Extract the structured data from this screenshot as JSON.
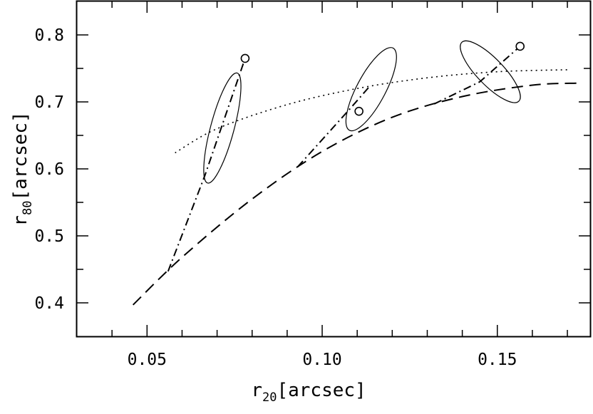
{
  "chart_data": {
    "type": "line",
    "title": "",
    "xlabel": {
      "base": "r",
      "sub": "20",
      "unit": "[arcsec]"
    },
    "ylabel": {
      "base": "r",
      "sub": "80",
      "unit": "[arcsec]"
    },
    "xlim": [
      0.03,
      0.1765
    ],
    "ylim": [
      0.35,
      0.85
    ],
    "xticks": [
      {
        "value": 0.05,
        "label": "0.05"
      },
      {
        "value": 0.1,
        "label": "0.10"
      },
      {
        "value": 0.15,
        "label": "0.15"
      }
    ],
    "xminor": [
      0.04,
      0.06,
      0.07,
      0.08,
      0.09,
      0.11,
      0.12,
      0.13,
      0.14,
      0.16,
      0.17
    ],
    "yticks": [
      {
        "value": 0.4,
        "label": "0.4"
      },
      {
        "value": 0.5,
        "label": "0.5"
      },
      {
        "value": 0.6,
        "label": "0.6"
      },
      {
        "value": 0.7,
        "label": "0.7"
      },
      {
        "value": 0.8,
        "label": "0.8"
      }
    ],
    "yminor": [
      0.45,
      0.55,
      0.65,
      0.75
    ],
    "grid": false,
    "legend": "none",
    "series": [
      {
        "style": "dashed",
        "x": [
          0.046,
          0.06,
          0.08,
          0.1,
          0.12,
          0.14,
          0.16,
          0.173
        ],
        "y": [
          0.397,
          0.468,
          0.555,
          0.626,
          0.677,
          0.708,
          0.725,
          0.728
        ]
      },
      {
        "style": "dotted",
        "x": [
          0.058,
          0.07,
          0.09,
          0.11,
          0.13,
          0.15,
          0.17
        ],
        "y": [
          0.624,
          0.66,
          0.696,
          0.72,
          0.736,
          0.745,
          0.748
        ]
      },
      {
        "style": "dash-dot",
        "x": [
          0.056,
          0.0665,
          0.078
        ],
        "y": [
          0.447,
          0.59,
          0.765
        ]
      },
      {
        "style": "dash-dot",
        "x": [
          0.093,
          0.108,
          0.1135
        ],
        "y": [
          0.603,
          0.69,
          0.723
        ]
      },
      {
        "style": "dash-dot",
        "x": [
          0.132,
          0.145,
          0.1565
        ],
        "y": [
          0.697,
          0.73,
          0.783
        ]
      }
    ],
    "points": [
      {
        "x": 0.078,
        "y": 0.765
      },
      {
        "x": 0.1105,
        "y": 0.686
      },
      {
        "x": 0.1565,
        "y": 0.783
      }
    ],
    "ellipses": [
      {
        "cx": 0.0715,
        "cy": 0.661,
        "rx": 0.00335,
        "ry": 0.085,
        "tilt_deg": 15
      },
      {
        "cx": 0.114,
        "cy": 0.719,
        "rx": 0.0041,
        "ry": 0.0695,
        "tilt_deg": 28
      },
      {
        "cx": 0.148,
        "cy": 0.745,
        "rx": 0.0117,
        "ry": 0.0198,
        "tilt_deg": 46
      }
    ]
  }
}
